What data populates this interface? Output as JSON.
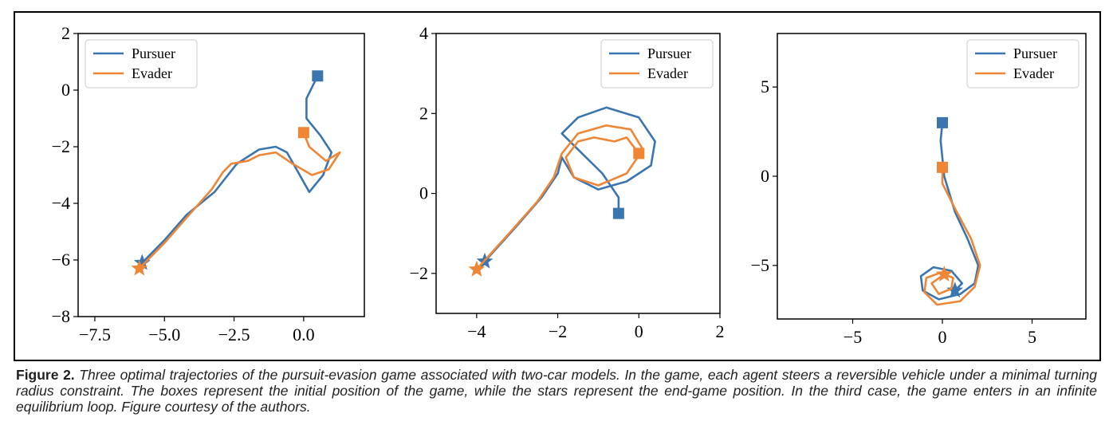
{
  "chart_data": [
    {
      "type": "line",
      "legend": "upper left",
      "xlim": [
        -8.1,
        2.18
      ],
      "ylim": [
        -8,
        2
      ],
      "xticks": [
        {
          "value": -7.5,
          "label": "−7.5"
        },
        {
          "value": -5.0,
          "label": "−5.0"
        },
        {
          "value": -2.5,
          "label": "−2.5"
        },
        {
          "value": 0.0,
          "label": "0.0"
        }
      ],
      "yticks": [
        2,
        0,
        {
          "value": -2,
          "label": "−2"
        },
        {
          "value": -4,
          "label": "−4"
        },
        {
          "value": -6,
          "label": "−6"
        },
        {
          "value": -8,
          "label": "−8"
        }
      ],
      "series": [
        {
          "name": "Pursuer",
          "color": "#3b75af",
          "x": [
            0.5,
            0.1,
            0.1,
            0.6,
            1.0,
            0.7,
            0.2,
            -0.2,
            -0.6,
            -1.0,
            -1.6,
            -2.4,
            -2.8,
            -3.2,
            -4.2,
            -5.0,
            -5.8
          ],
          "values": [
            0.5,
            -0.3,
            -1.0,
            -1.6,
            -2.2,
            -3.0,
            -3.6,
            -2.9,
            -2.2,
            -2.0,
            -2.1,
            -2.6,
            -3.1,
            -3.6,
            -4.4,
            -5.3,
            -6.1
          ]
        },
        {
          "name": "Evader",
          "color": "#ef8636",
          "x": [
            0.0,
            0.2,
            0.8,
            1.3,
            0.9,
            0.3,
            -0.4,
            -1.0,
            -1.6,
            -2.0,
            -2.6,
            -2.9,
            -3.3,
            -4.2,
            -5.0,
            -5.9
          ],
          "values": [
            -1.5,
            -2.0,
            -2.5,
            -2.2,
            -2.8,
            -3.0,
            -2.6,
            -2.2,
            -2.3,
            -2.5,
            -2.6,
            -2.9,
            -3.5,
            -4.5,
            -5.4,
            -6.3
          ]
        }
      ]
    },
    {
      "type": "line",
      "legend": "upper right",
      "xlim": [
        -5,
        2
      ],
      "ylim": [
        -3,
        4
      ],
      "xticks": [
        {
          "value": -4,
          "label": "−4"
        },
        {
          "value": -2,
          "label": "−2"
        },
        0,
        2
      ],
      "yticks": [
        4,
        2,
        0,
        {
          "value": -2,
          "label": "−2"
        }
      ],
      "series": [
        {
          "name": "Pursuer",
          "color": "#3b75af",
          "x": [
            -0.5,
            -0.5,
            -0.9,
            -1.5,
            -1.9,
            -1.5,
            -0.8,
            0.0,
            0.4,
            0.3,
            -0.3,
            -1.0,
            -1.6,
            -1.9,
            -2.0,
            -2.4,
            -3.0,
            -3.8
          ],
          "values": [
            -0.5,
            -0.1,
            0.5,
            1.1,
            1.5,
            1.9,
            2.15,
            1.9,
            1.3,
            0.7,
            0.3,
            0.1,
            0.4,
            0.9,
            0.5,
            -0.1,
            -0.8,
            -1.7
          ]
        },
        {
          "name": "Evader",
          "color": "#ef8636",
          "x": [
            0.0,
            -0.3,
            -0.6,
            -1.1,
            -1.5,
            -1.8,
            -1.6,
            -1.0,
            -0.3,
            0.1,
            -0.2,
            -0.8,
            -1.5,
            -1.9,
            -2.1,
            -2.5,
            -3.2,
            -4.0
          ],
          "values": [
            1.0,
            1.4,
            1.3,
            1.4,
            1.3,
            0.9,
            0.4,
            0.2,
            0.5,
            1.1,
            1.6,
            1.7,
            1.5,
            1.0,
            0.4,
            -0.2,
            -1.0,
            -1.9
          ]
        }
      ]
    },
    {
      "type": "line",
      "legend": "upper right",
      "xlim": [
        -9.2,
        8
      ],
      "ylim": [
        -8,
        8
      ],
      "xticks": [
        {
          "value": -5,
          "label": "−5"
        },
        0,
        5
      ],
      "yticks": [
        5,
        0,
        {
          "value": -5,
          "label": "−5"
        }
      ],
      "series": [
        {
          "name": "Pursuer",
          "color": "#3b75af",
          "x": [
            0.0,
            -0.1,
            0.1,
            0.7,
            1.4,
            2.0,
            1.8,
            1.0,
            -0.2,
            -1.1,
            -1.2,
            -0.5,
            0.5,
            1.1,
            0.7
          ],
          "values": [
            3.0,
            2.0,
            0.0,
            -2.0,
            -3.5,
            -5.0,
            -6.0,
            -6.6,
            -6.9,
            -6.4,
            -5.6,
            -5.1,
            -5.3,
            -6.0,
            -6.4
          ]
        },
        {
          "name": "Evader",
          "color": "#ef8636",
          "x": [
            0.0,
            0.0,
            0.8,
            1.6,
            2.1,
            1.8,
            1.0,
            -0.3,
            -1.0,
            -0.9,
            -0.1,
            0.6,
            0.5,
            -0.2,
            -0.6,
            0.1
          ],
          "values": [
            0.5,
            -0.4,
            -2.0,
            -3.5,
            -5.0,
            -6.2,
            -7.0,
            -7.2,
            -6.5,
            -5.7,
            -5.4,
            -5.7,
            -6.3,
            -6.6,
            -6.0,
            -5.5
          ]
        }
      ]
    }
  ],
  "caption": {
    "label": "Figure 2.",
    "text": "Three optimal trajectories of the pursuit-evasion game associated with two-car models. In the game, each agent steers a reversible vehicle under a minimal turning radius constraint. The boxes represent the initial position of the game, while the stars represent the end-game position. In the third case, the game enters in an infinite equilibrium loop. Figure courtesy of the authors."
  }
}
